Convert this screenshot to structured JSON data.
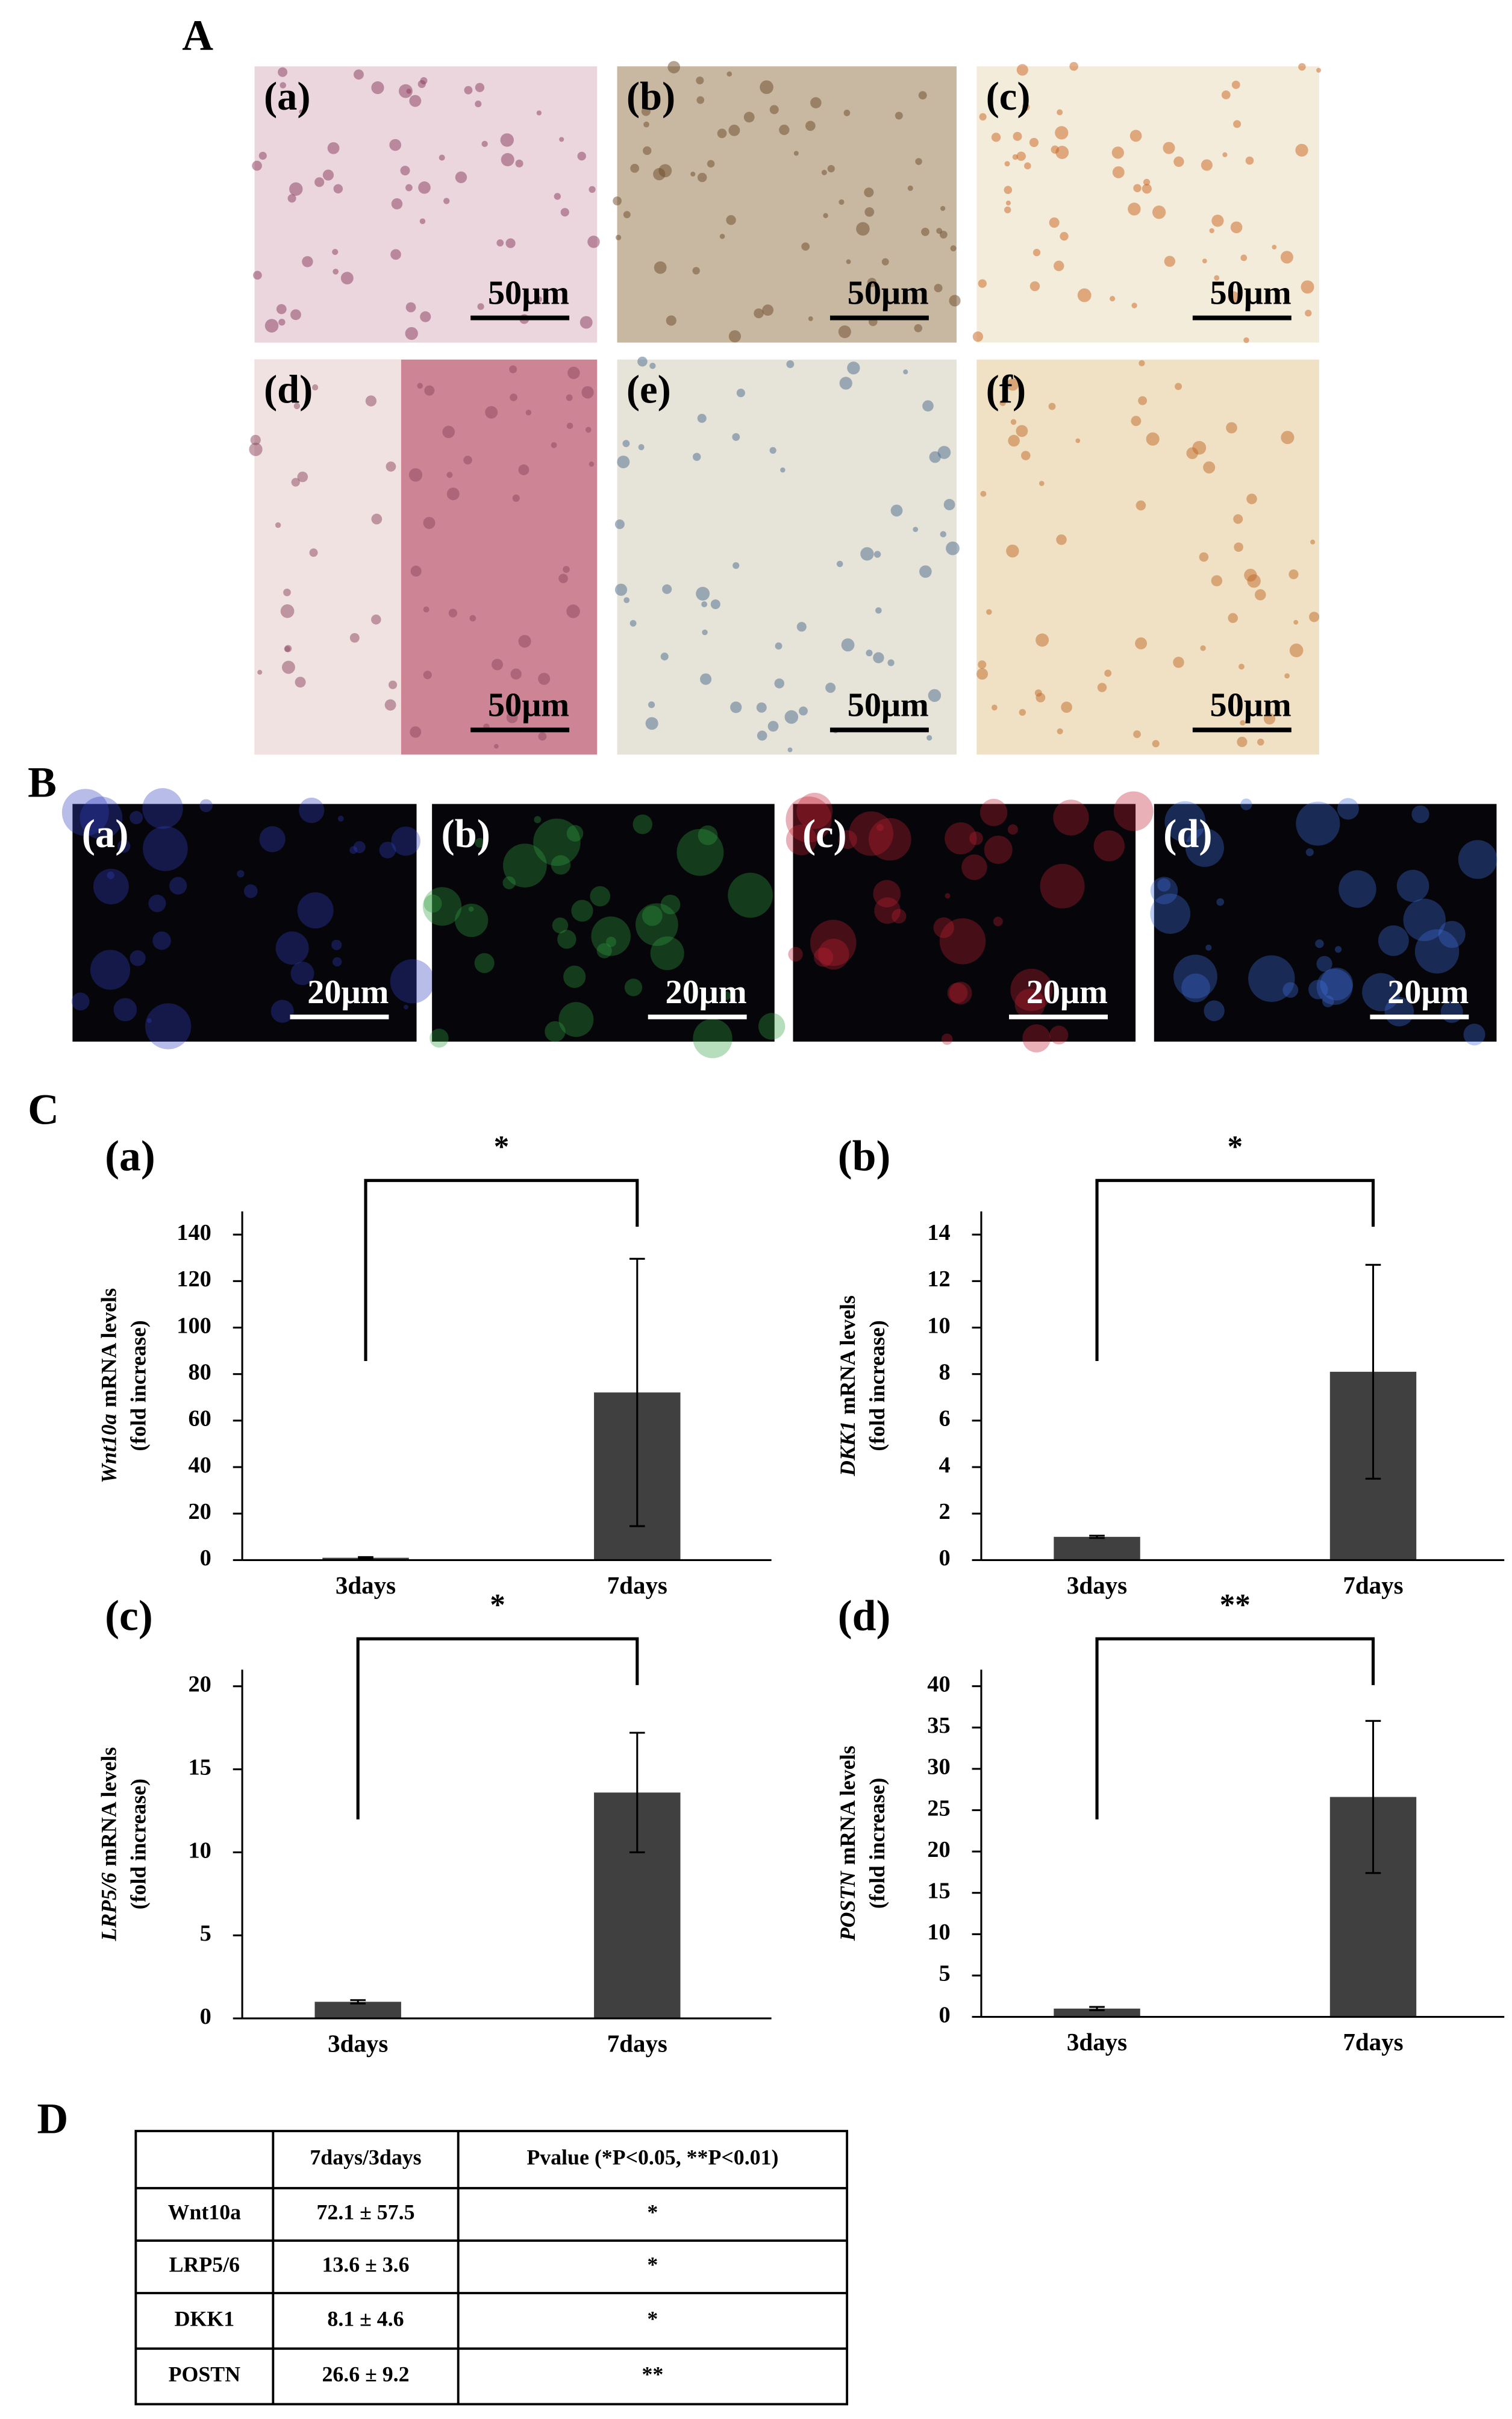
{
  "figure": {
    "panel_labels": [
      "A",
      "B",
      "C",
      "D"
    ],
    "micrographs_A": [
      {
        "label": "(a)",
        "scale": "50μm"
      },
      {
        "label": "(b)",
        "scale": "50μm"
      },
      {
        "label": "(c)",
        "scale": "50μm"
      },
      {
        "label": "(d)",
        "scale": "50μm"
      },
      {
        "label": "(e)",
        "scale": "50μm"
      },
      {
        "label": "(f)",
        "scale": "50μm"
      }
    ],
    "micrographs_B": [
      {
        "label": "(a)",
        "scale": "20μm"
      },
      {
        "label": "(b)",
        "scale": "20μm"
      },
      {
        "label": "(c)",
        "scale": "20μm"
      },
      {
        "label": "(d)",
        "scale": "20μm"
      }
    ]
  },
  "chart_data": [
    {
      "type": "bar",
      "title": "(a)",
      "ylabel_gene": "Wnt10a",
      "ylabel": "mRNA levels",
      "ylabel_note": "(fold increase)",
      "categories": [
        "3days",
        "7days"
      ],
      "values": [
        1,
        72.1
      ],
      "errors": [
        0.3,
        57.5
      ],
      "color": "#404040",
      "ylim": [
        0,
        150
      ],
      "yticks": [
        0,
        20,
        40,
        60,
        80,
        100,
        120,
        140
      ],
      "significance": "*"
    },
    {
      "type": "bar",
      "title": "(b)",
      "ylabel_gene": "DKK1",
      "ylabel": "mRNA levels",
      "ylabel_note": "(fold increase)",
      "categories": [
        "3days",
        "7days"
      ],
      "values": [
        1,
        8.1
      ],
      "errors": [
        0.05,
        4.6
      ],
      "color": "#404040",
      "ylim": [
        0,
        15
      ],
      "yticks": [
        0,
        2,
        4,
        6,
        8,
        10,
        12,
        14
      ],
      "significance": "*"
    },
    {
      "type": "bar",
      "title": "(c)",
      "ylabel_gene": "LRP5/6",
      "ylabel": "mRNA levels",
      "ylabel_note": "(fold increase)",
      "categories": [
        "3days",
        "7days"
      ],
      "values": [
        1,
        13.6
      ],
      "errors": [
        0.1,
        3.6
      ],
      "color": "#404040",
      "ylim": [
        0,
        21
      ],
      "yticks": [
        0,
        5,
        10,
        15,
        20
      ],
      "significance": "*"
    },
    {
      "type": "bar",
      "title": "(d)",
      "ylabel_gene": "POSTN",
      "ylabel": "mRNA levels",
      "ylabel_note": "(fold increase)",
      "categories": [
        "3days",
        "7days"
      ],
      "values": [
        1,
        26.6
      ],
      "errors": [
        0.2,
        9.2
      ],
      "color": "#404040",
      "ylim": [
        0,
        42
      ],
      "yticks": [
        0,
        5,
        10,
        15,
        20,
        25,
        30,
        35,
        40
      ],
      "significance": "**"
    }
  ],
  "table": {
    "header": [
      "7days/3days",
      "Pvalue (*P<0.05, **P<0.01)"
    ],
    "rows": [
      [
        "Wnt10a",
        "72.1 ± 57.5",
        "*"
      ],
      [
        "LRP5/6",
        "13.6 ± 3.6",
        "*"
      ],
      [
        "DKK1",
        "8.1 ± 4.6",
        "*"
      ],
      [
        "POSTN",
        "26.6 ± 9.2",
        "**"
      ]
    ]
  }
}
